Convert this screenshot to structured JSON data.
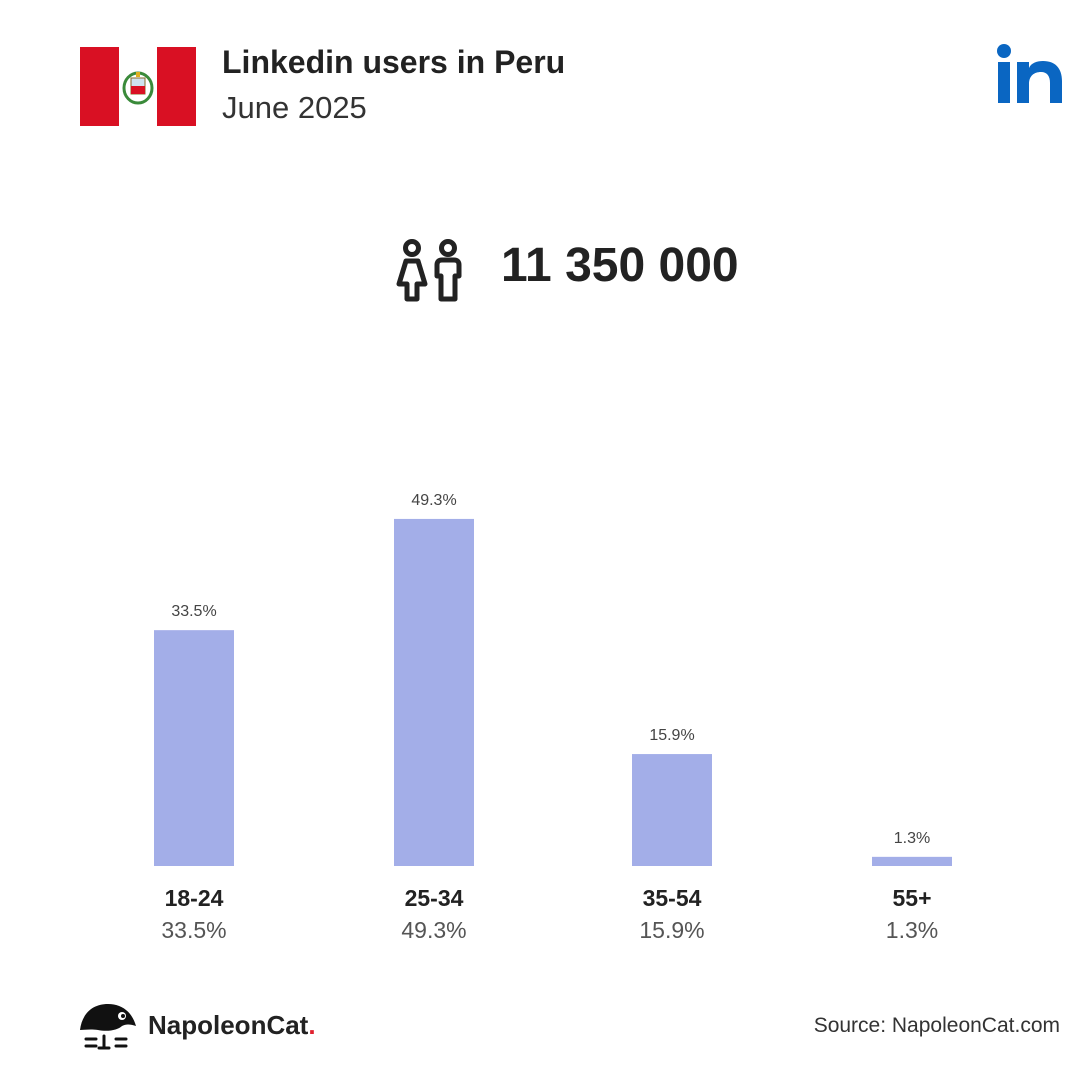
{
  "header": {
    "title": "Linkedin users in Peru",
    "subtitle": "June 2025"
  },
  "summary": {
    "total_users": "11 350 000"
  },
  "icons": {
    "flag": "peru-flag-icon",
    "brand": "linkedin-logo-icon",
    "users": "users-icon",
    "footer": "napoleoncat-logo-icon"
  },
  "colors": {
    "bar": "#A3AEE8",
    "linkedin_blue": "#0A66C2",
    "flag_red": "#D91023"
  },
  "chart_data": {
    "type": "bar",
    "categories": [
      "18-24",
      "25-34",
      "35-54",
      "55+"
    ],
    "values": [
      33.5,
      49.3,
      15.9,
      1.3
    ],
    "value_labels": [
      "33.5%",
      "49.3%",
      "15.9%",
      "1.3%"
    ],
    "ylim": [
      0,
      50
    ],
    "grid": false
  },
  "footer": {
    "brand_name": "NapoleonCat",
    "brand_dot": ".",
    "source": "Source: NapoleonCat.com"
  }
}
